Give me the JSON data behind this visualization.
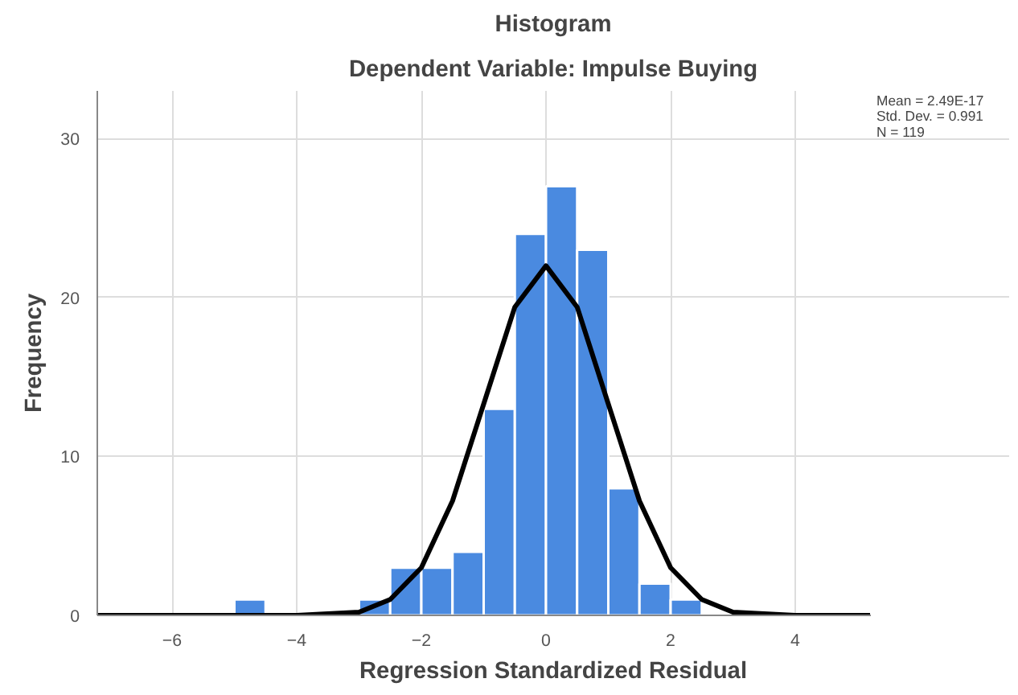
{
  "chart_data": {
    "type": "histogram",
    "title": "Histogram",
    "subtitle": "Dependent Variable: Impulse Buying",
    "xlabel": "Regression Standardized Residual",
    "ylabel": "Frequency",
    "bins": [
      -5,
      -4.5,
      -4,
      -3.5,
      -3,
      -2.5,
      -2,
      -1.5,
      -1,
      -0.5,
      0,
      0.5,
      1,
      1.5,
      2,
      2.5
    ],
    "values": [
      1,
      0,
      0,
      0,
      1,
      3,
      3,
      4,
      13,
      24,
      27,
      23,
      8,
      2,
      1
    ],
    "color": "#4a8ae0",
    "series": [
      {
        "type": "line",
        "color": "#000000",
        "x": [
          -7.2,
          -4,
          -3.5,
          -3,
          -2.5,
          -2,
          -1.5,
          -1,
          -0.5,
          0,
          0.5,
          1,
          1.5,
          2,
          2.5,
          3,
          3.5,
          4,
          5.2
        ],
        "values": [
          0,
          0,
          0.1,
          0.2,
          1,
          3,
          7.2,
          13.3,
          19.4,
          22,
          19.4,
          13.3,
          7.2,
          3,
          1,
          0.2,
          0.1,
          0,
          0
        ]
      }
    ],
    "xlim": [
      -7.2,
      5.2
    ],
    "ylim": [
      0,
      33
    ],
    "xticks": [
      -6,
      -4,
      -2,
      0,
      2,
      4
    ],
    "yticks": [
      0,
      10,
      20,
      30
    ],
    "grid": true,
    "annotations": [
      "Mean = 2.49E-17",
      "Std. Dev. = 0.991",
      "N = 119"
    ]
  }
}
